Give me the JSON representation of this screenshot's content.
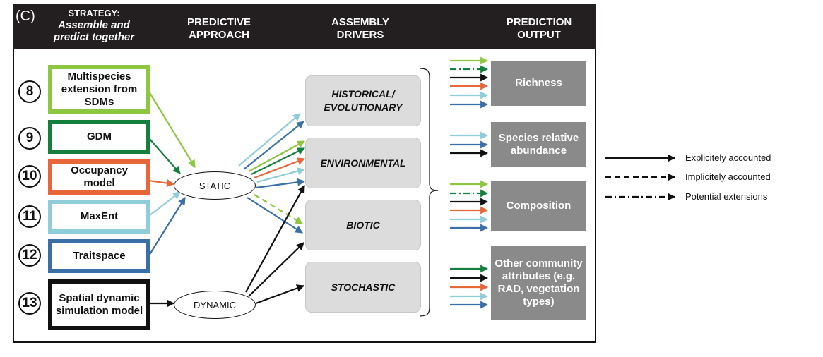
{
  "panel_label": "(C)",
  "header": {
    "strategy_line1": "STRATEGY:",
    "strategy_line2": "Assemble  and",
    "strategy_line3": "predict together",
    "approach_line1": "PREDICTIVE",
    "approach_line2": "APPROACH",
    "drivers_line1": "ASSEMBLY",
    "drivers_line2": "DRIVERS",
    "output_line1": "PREDICTION",
    "output_line2": "OUTPUT"
  },
  "colors": {
    "light_green": "#8dc63f",
    "dark_green": "#15803d",
    "orange": "#e8673a",
    "light_blue": "#8fcdd8",
    "blue": "#3a6fa8",
    "black": "#111111",
    "header_bg": "#231f20",
    "driver_bg": "#dcdcdc",
    "output_bg": "#8a8a8a"
  },
  "methods": [
    {
      "number": "8",
      "label": "Multispecies extension from SDMs",
      "color": "#8dc63f"
    },
    {
      "number": "9",
      "label": "GDM",
      "color": "#15803d"
    },
    {
      "number": "10",
      "label": "Occupancy model",
      "color": "#e8673a"
    },
    {
      "number": "11",
      "label": "MaxEnt",
      "color": "#8fcdd8"
    },
    {
      "number": "12",
      "label": "Traitspace",
      "color": "#3a6fa8"
    },
    {
      "number": "13",
      "label": "Spatial dynamic simulation model",
      "color": "#111111"
    }
  ],
  "approaches": {
    "static": "STATIC",
    "dynamic": "DYNAMIC"
  },
  "drivers": {
    "historical": "HISTORICAL/ EVOLUTIONARY",
    "environmental": "ENVIRONMENTAL",
    "biotic": "BIOTIC",
    "stochastic": "STOCHASTIC"
  },
  "outputs": {
    "richness": "Richness",
    "abundance": "Species relative abundance",
    "composition": "Composition",
    "other": "Other community attributes (e.g. RAD, vegetation types)"
  },
  "legend": {
    "explicit": "Explicitely accounted",
    "implicit": "Implicitely accounted",
    "potential": "Potential extensions"
  }
}
